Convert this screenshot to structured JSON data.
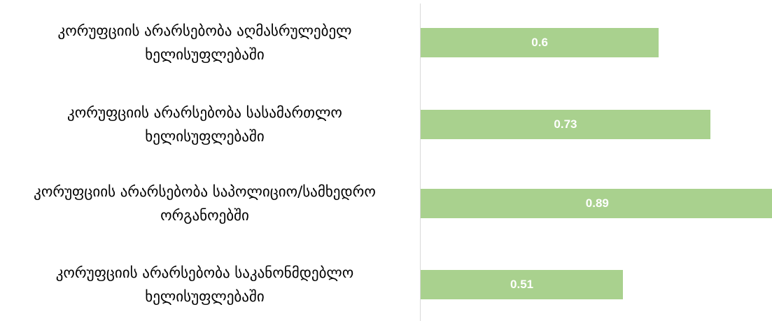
{
  "chart_data": {
    "type": "bar",
    "orientation": "horizontal",
    "color": "#a9d18e",
    "categories": [
      "კორუფციის არარსებობა აღმასრულებელ\nხელისუფლებაში",
      "კორუფციის არარსებობა სასამართლო\nხელისუფლებაში",
      "კორუფციის არარსებობა საპოლიციო/სამხედრო\nორგანოებში",
      "კორუფციის არარსებობა საკანონმდებლო\nხელისუფლებაში"
    ],
    "values": [
      0.6,
      0.73,
      0.89,
      0.51
    ]
  }
}
